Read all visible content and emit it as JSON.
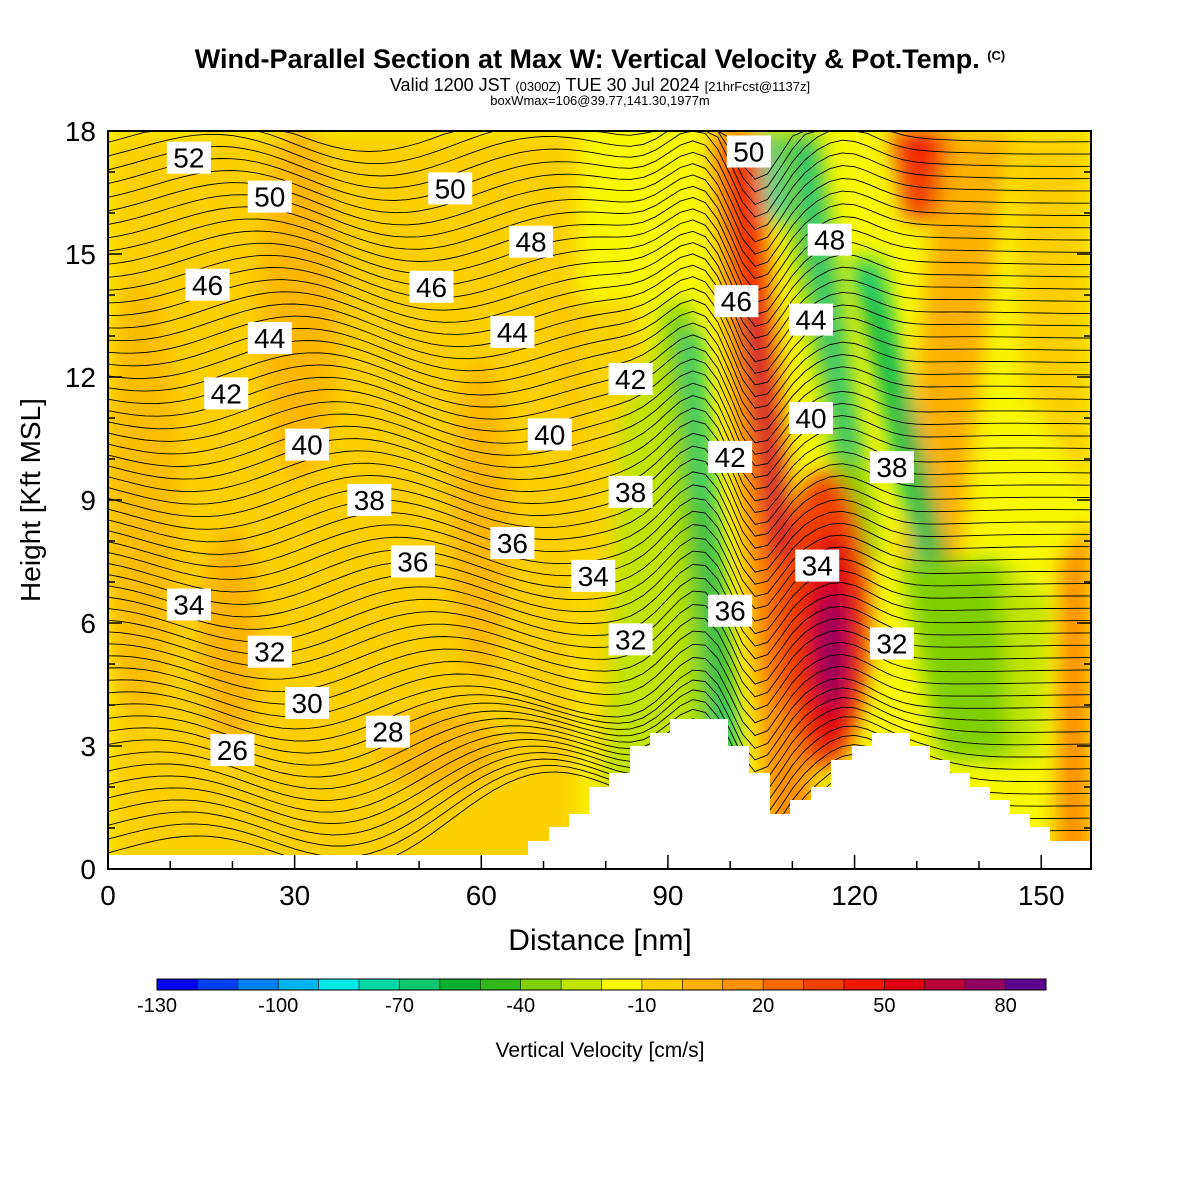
{
  "title": {
    "main": "Wind-Parallel Section at Max W: Vertical Velocity & Pot.Temp.",
    "mark": "(C)",
    "valid_pre": "Valid 1200 JST",
    "valid_z": "(0300Z)",
    "valid_date": "TUE 30 Jul 2024",
    "valid_fcst": "[21hrFcst@1137z]",
    "box": "boxWmax=106@39.77,141.30,1977m"
  },
  "chart_data": {
    "type": "heatmap",
    "xlabel": "Distance [nm]",
    "ylabel": "Height [Kft MSL]",
    "xlim": [
      0,
      158
    ],
    "ylim": [
      0,
      18
    ],
    "x_ticks": [
      0,
      30,
      60,
      90,
      120,
      150
    ],
    "y_ticks": [
      0,
      3,
      6,
      9,
      12,
      15,
      18
    ],
    "colorbar": {
      "label": "Vertical Velocity [cm/s]",
      "tick_labels": [
        -130,
        -100,
        -70,
        -40,
        -10,
        20,
        50,
        80
      ],
      "colors": [
        "#0000f0",
        "#0040f0",
        "#0080f0",
        "#00b4f0",
        "#00e8e8",
        "#00d8a8",
        "#10c870",
        "#08b030",
        "#30b818",
        "#80d000",
        "#c0e400",
        "#f8f800",
        "#fcd000",
        "#fcb000",
        "#fc9000",
        "#f86800",
        "#f04000",
        "#f01800",
        "#e00010",
        "#b8003a",
        "#900060",
        "#600090"
      ]
    },
    "theta_contour_labels": [
      {
        "text": "26",
        "x": 20,
        "y": 2.9
      },
      {
        "text": "28",
        "x": 45,
        "y": 3.35
      },
      {
        "text": "30",
        "x": 32,
        "y": 4.05
      },
      {
        "text": "32",
        "x": 26,
        "y": 5.3
      },
      {
        "text": "34",
        "x": 13,
        "y": 6.45
      },
      {
        "text": "36",
        "x": 49,
        "y": 7.5
      },
      {
        "text": "36",
        "x": 65,
        "y": 7.95
      },
      {
        "text": "38",
        "x": 42,
        "y": 9.0
      },
      {
        "text": "40",
        "x": 32,
        "y": 10.35
      },
      {
        "text": "42",
        "x": 19,
        "y": 11.6
      },
      {
        "text": "44",
        "x": 26,
        "y": 12.95
      },
      {
        "text": "46",
        "x": 16,
        "y": 14.25
      },
      {
        "text": "50",
        "x": 26,
        "y": 16.4
      },
      {
        "text": "52",
        "x": 13,
        "y": 17.35
      },
      {
        "text": "50",
        "x": 55,
        "y": 16.6
      },
      {
        "text": "48",
        "x": 68,
        "y": 15.3
      },
      {
        "text": "46",
        "x": 52,
        "y": 14.2
      },
      {
        "text": "44",
        "x": 65,
        "y": 13.1
      },
      {
        "text": "42",
        "x": 84,
        "y": 11.95
      },
      {
        "text": "40",
        "x": 71,
        "y": 10.6
      },
      {
        "text": "38",
        "x": 84,
        "y": 9.2
      },
      {
        "text": "34",
        "x": 78,
        "y": 7.15
      },
      {
        "text": "32",
        "x": 84,
        "y": 5.6
      },
      {
        "text": "36",
        "x": 100,
        "y": 6.3
      },
      {
        "text": "42",
        "x": 100,
        "y": 10.05
      },
      {
        "text": "46",
        "x": 101,
        "y": 13.85
      },
      {
        "text": "50",
        "x": 103,
        "y": 17.5
      },
      {
        "text": "48",
        "x": 116,
        "y": 15.35
      },
      {
        "text": "44",
        "x": 113,
        "y": 13.4
      },
      {
        "text": "40",
        "x": 113,
        "y": 11.0
      },
      {
        "text": "34",
        "x": 114,
        "y": 7.4
      },
      {
        "text": "32",
        "x": 126,
        "y": 5.5
      },
      {
        "text": "38",
        "x": 126,
        "y": 9.8
      }
    ]
  }
}
